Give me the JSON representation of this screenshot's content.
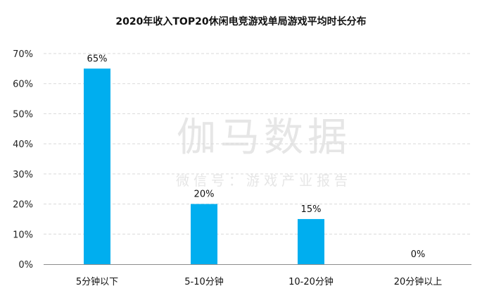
{
  "chart_data": {
    "type": "bar",
    "title": "2020年收入TOP20休闲电竞游戏单局游戏平均时长分布",
    "categories": [
      "5分钟以下",
      "5-10分钟",
      "10-20分钟",
      "20分钟以上"
    ],
    "values": [
      65,
      20,
      15,
      0
    ],
    "data_labels": [
      "65%",
      "20%",
      "15%",
      "0%"
    ],
    "yticks": [
      "0%",
      "10%",
      "20%",
      "30%",
      "40%",
      "50%",
      "60%",
      "70%"
    ],
    "ylim": [
      0,
      70
    ],
    "grid": true,
    "legend": "none",
    "bar_color": "#00aeef",
    "grid_color": "#d9d9d9",
    "axis_color": "#8c8c8c",
    "watermark_color": "#e6e6e6"
  },
  "watermark": {
    "brand": "伽马数据",
    "tagline": "微信号：游戏产业报告"
  }
}
